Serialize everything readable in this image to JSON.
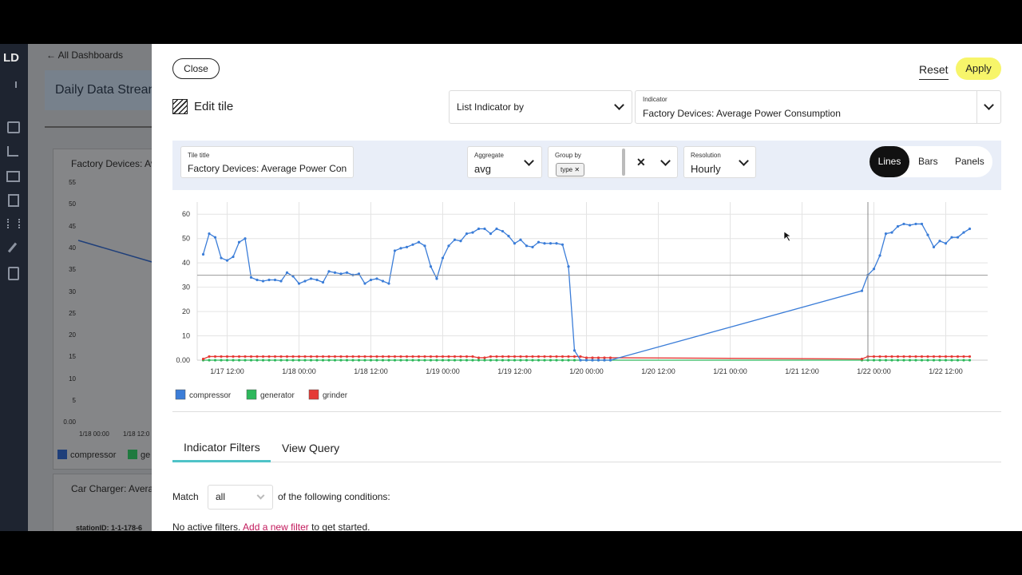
{
  "sidebar": {
    "logo": "LD"
  },
  "background": {
    "back_link": "All Dashboards",
    "dashboard_title": "Daily Data Stream",
    "tiles": [
      {
        "title": "Factory Devices: Av",
        "yticks": [
          "55",
          "50",
          "45",
          "40",
          "35",
          "30",
          "25",
          "20",
          "15",
          "10",
          "5",
          "0.00"
        ],
        "xticks": [
          "1/18 00:00",
          "1/18 12:0"
        ],
        "legend": [
          "compressor",
          "ge"
        ]
      },
      {
        "title": "Car Charger: Avera",
        "subtitle": "stationID: 1-1-178-6"
      }
    ]
  },
  "modal": {
    "close": "Close",
    "reset": "Reset",
    "apply": "Apply",
    "heading": "Edit tile",
    "list_select": "List Indicator by",
    "indicator": {
      "label": "Indicator",
      "value": "Factory Devices: Average Power Consumption"
    },
    "toolbar": {
      "tile_title": {
        "label": "Tile title",
        "value": "Factory Devices: Average Power Con"
      },
      "aggregate": {
        "label": "Aggregate",
        "value": "avg"
      },
      "group_by": {
        "label": "Group by",
        "chip": "type"
      },
      "resolution": {
        "label": "Resolution",
        "value": "Hourly"
      },
      "views": [
        "Lines",
        "Bars",
        "Panels"
      ]
    },
    "tabs": [
      "Indicator Filters",
      "View Query"
    ],
    "filters": {
      "match": "Match",
      "match_value": "all",
      "conditions": "of the following conditions:",
      "empty": "No active filters.",
      "link": "Add a new filter",
      "empty_end": "to get started."
    }
  },
  "chart_data": {
    "type": "line",
    "x": [
      "1/17 08:00",
      "1/17 09:00",
      "1/17 10:00",
      "1/17 11:00",
      "1/17 12:00",
      "1/17 13:00",
      "1/17 14:00",
      "1/17 15:00",
      "1/17 16:00",
      "1/17 17:00",
      "1/17 18:00",
      "1/17 19:00",
      "1/17 20:00",
      "1/17 21:00",
      "1/17 22:00",
      "1/17 23:00",
      "1/18 00:00",
      "1/18 01:00",
      "1/18 02:00",
      "1/18 03:00",
      "1/18 04:00",
      "1/18 05:00",
      "1/18 06:00",
      "1/18 07:00",
      "1/18 08:00",
      "1/18 09:00",
      "1/18 10:00",
      "1/18 11:00",
      "1/18 12:00",
      "1/18 13:00",
      "1/18 14:00",
      "1/18 15:00",
      "1/18 16:00",
      "1/18 17:00",
      "1/18 18:00",
      "1/18 19:00",
      "1/18 20:00",
      "1/18 21:00",
      "1/18 22:00",
      "1/18 23:00",
      "1/19 00:00",
      "1/19 01:00",
      "1/19 02:00",
      "1/19 03:00",
      "1/19 04:00",
      "1/19 05:00",
      "1/19 06:00",
      "1/19 07:00",
      "1/19 08:00",
      "1/19 09:00",
      "1/19 10:00",
      "1/19 11:00",
      "1/19 12:00",
      "1/19 13:00",
      "1/19 14:00",
      "1/19 15:00",
      "1/19 16:00",
      "1/19 17:00",
      "1/19 18:00",
      "1/19 19:00",
      "1/19 20:00",
      "1/19 21:00",
      "1/19 22:00",
      "1/19 23:00",
      "1/20 00:00",
      "1/20 01:00",
      "1/20 02:00",
      "1/20 03:00",
      "1/20 04:00",
      "1/21 22:00",
      "1/21 23:00",
      "1/22 00:00",
      "1/22 01:00",
      "1/22 02:00",
      "1/22 03:00",
      "1/22 04:00",
      "1/22 05:00",
      "1/22 06:00",
      "1/22 07:00",
      "1/22 08:00",
      "1/22 09:00",
      "1/22 10:00",
      "1/22 11:00",
      "1/22 12:00",
      "1/22 13:00",
      "1/22 14:00",
      "1/22 15:00",
      "1/22 16:00"
    ],
    "series": [
      {
        "name": "compressor",
        "color": "#3b7dd8",
        "values": [
          43.5,
          52,
          50.5,
          42,
          41,
          42.5,
          48.5,
          50,
          34,
          33,
          32.5,
          33,
          33,
          32.5,
          36,
          34.5,
          31.5,
          32.5,
          33.5,
          33,
          32,
          36.5,
          36,
          35.5,
          36,
          35,
          35.5,
          31.5,
          33,
          33.5,
          32.5,
          31.5,
          45,
          46,
          46.5,
          47.5,
          48.5,
          47,
          38.5,
          33.5,
          42,
          47,
          49.5,
          49,
          52,
          52.5,
          54,
          54,
          52,
          54,
          53,
          51,
          48,
          49.5,
          47,
          46.5,
          48.5,
          48,
          48,
          48,
          47.5,
          38.5,
          4,
          0,
          0,
          0,
          0,
          0,
          0,
          28.5,
          35,
          37.5,
          43,
          52,
          52.5,
          55,
          56,
          55.5,
          56,
          56,
          51.5,
          46.5,
          49,
          48,
          50.5,
          50.5,
          52.5,
          54
        ]
      },
      {
        "name": "generator",
        "color": "#2eb85c",
        "values": [
          0,
          0,
          0,
          0,
          0,
          0,
          0,
          0,
          0,
          0,
          0,
          0,
          0,
          0,
          0,
          0,
          0,
          0,
          0,
          0,
          0,
          0,
          0,
          0,
          0,
          0,
          0,
          0,
          0,
          0,
          0,
          0,
          0,
          0,
          0,
          0,
          0,
          0,
          0,
          0,
          0,
          0,
          0,
          0,
          0,
          0,
          0,
          0,
          0,
          0,
          0,
          0,
          0,
          0,
          0,
          0,
          0,
          0,
          0,
          0,
          0,
          0,
          0,
          0,
          0,
          0,
          0,
          0,
          0,
          0,
          0,
          0,
          0,
          0,
          0,
          0,
          0,
          0,
          0,
          0,
          0,
          0,
          0,
          0,
          0,
          0,
          0,
          0
        ]
      },
      {
        "name": "grinder",
        "color": "#e53935",
        "values": [
          0.5,
          1.5,
          1.5,
          1.5,
          1.5,
          1.5,
          1.5,
          1.5,
          1.5,
          1.5,
          1.5,
          1.5,
          1.5,
          1.5,
          1.5,
          1.5,
          1.5,
          1.5,
          1.5,
          1.5,
          1.5,
          1.5,
          1.5,
          1.5,
          1.5,
          1.5,
          1.5,
          1.5,
          1.5,
          1.5,
          1.5,
          1.5,
          1.5,
          1.5,
          1.5,
          1.5,
          1.5,
          1.5,
          1.5,
          1.5,
          1.5,
          1.5,
          1.5,
          1.5,
          1.5,
          1.5,
          1,
          1,
          1.5,
          1.5,
          1.5,
          1.5,
          1.5,
          1.5,
          1.5,
          1.5,
          1.5,
          1.5,
          1.5,
          1.5,
          1.5,
          1.5,
          1.5,
          1.5,
          1,
          1,
          1,
          1,
          1,
          0.5,
          1.5,
          1.5,
          1.5,
          1.5,
          1.5,
          1.5,
          1.5,
          1.5,
          1.5,
          1.5,
          1.5,
          1.5,
          1.5,
          1.5,
          1.5,
          1.5,
          1.5,
          1.5
        ]
      }
    ],
    "xlim": [
      "1/17 07:00",
      "1/22 19:00"
    ],
    "xticks": [
      "1/17 12:00",
      "1/18 00:00",
      "1/18 12:00",
      "1/19 00:00",
      "1/19 12:00",
      "1/20 00:00",
      "1/20 12:00",
      "1/21 00:00",
      "1/21 12:00",
      "1/22 00:00",
      "1/22 12:00"
    ],
    "ylim": [
      0,
      65
    ],
    "yticks": [
      {
        "value": 0,
        "label": "0.00"
      },
      10,
      20,
      30,
      40,
      50,
      60
    ],
    "grid": true,
    "legend": "bottom-left"
  }
}
